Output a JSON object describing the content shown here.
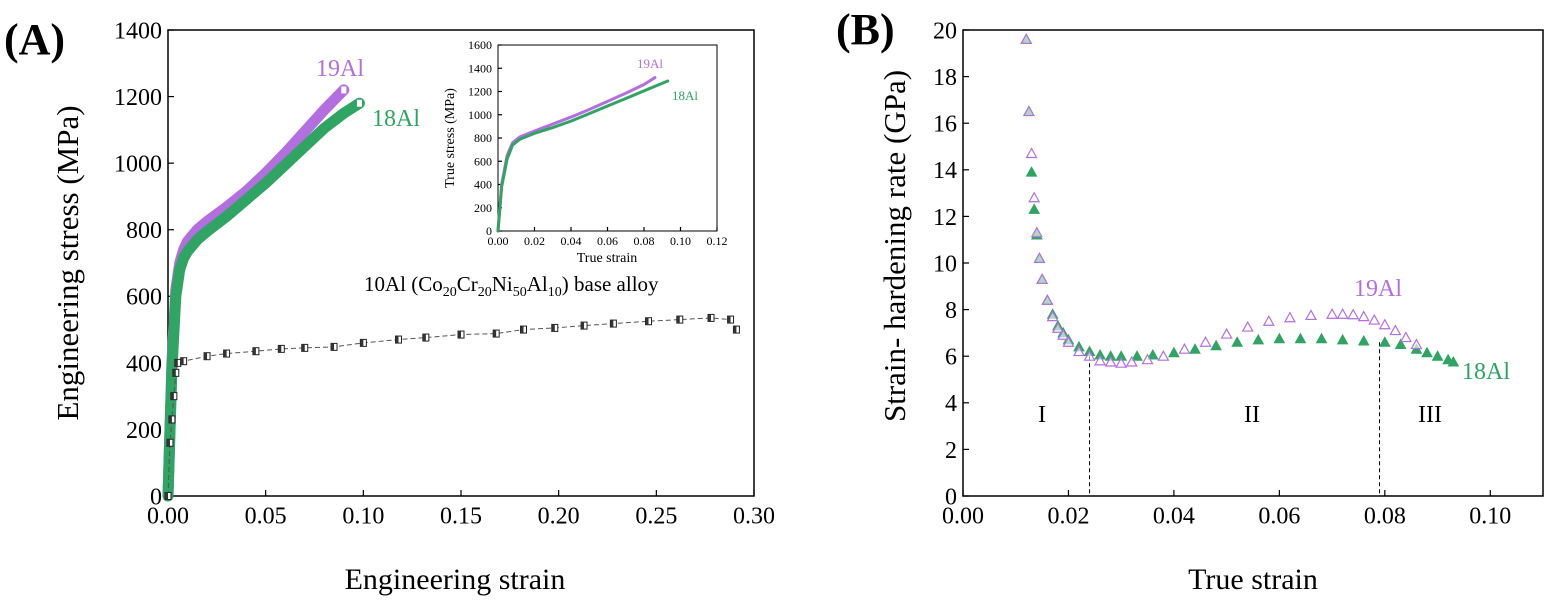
{
  "panels": {
    "a": {
      "letter": "(A)"
    },
    "b": {
      "letter": "(B)"
    }
  },
  "colors": {
    "al19": "#b36fdf",
    "al18": "#2fa463",
    "base": "#333333"
  },
  "chart_data": [
    {
      "id": "A",
      "type": "line",
      "xlabel": "Engineering strain",
      "ylabel": "Engineering stress (MPa)",
      "xlim": [
        0,
        0.3
      ],
      "ylim": [
        0,
        1400
      ],
      "xticks": [
        "0.00",
        "0.05",
        "0.10",
        "0.15",
        "0.20",
        "0.25",
        "0.30"
      ],
      "yticks": [
        "0",
        "200",
        "400",
        "600",
        "800",
        "1000",
        "1200",
        "1400"
      ],
      "grid": false,
      "annotation": {
        "base_prefix": "10Al (Co",
        "s1": "20",
        "cr": "Cr",
        "s2": "20",
        "ni": "Ni",
        "s3": "50",
        "al": "Al",
        "s4": "10",
        "base_suffix": ") base alloy"
      },
      "series": [
        {
          "name": "19Al",
          "color": "#b36fdf",
          "x": [
            0,
            0.002,
            0.004,
            0.006,
            0.008,
            0.01,
            0.015,
            0.02,
            0.03,
            0.04,
            0.05,
            0.06,
            0.07,
            0.08,
            0.09
          ],
          "y": [
            0,
            400,
            620,
            700,
            740,
            765,
            800,
            825,
            868,
            915,
            970,
            1030,
            1095,
            1160,
            1220
          ]
        },
        {
          "name": "18Al",
          "color": "#2fa463",
          "x": [
            0,
            0.002,
            0.004,
            0.006,
            0.008,
            0.01,
            0.015,
            0.02,
            0.03,
            0.04,
            0.05,
            0.06,
            0.07,
            0.08,
            0.09,
            0.098
          ],
          "y": [
            0,
            380,
            600,
            680,
            715,
            735,
            770,
            795,
            840,
            890,
            940,
            995,
            1050,
            1105,
            1150,
            1180
          ]
        },
        {
          "name": "10Al",
          "color": "#333333",
          "x": [
            0,
            0.001,
            0.002,
            0.003,
            0.004,
            0.005,
            0.008,
            0.02,
            0.03,
            0.045,
            0.058,
            0.07,
            0.085,
            0.1,
            0.118,
            0.132,
            0.15,
            0.168,
            0.182,
            0.198,
            0.213,
            0.228,
            0.246,
            0.262,
            0.278,
            0.288,
            0.291
          ],
          "y": [
            0,
            160,
            230,
            300,
            370,
            400,
            405,
            420,
            428,
            435,
            442,
            445,
            448,
            460,
            470,
            476,
            485,
            488,
            500,
            505,
            512,
            518,
            525,
            530,
            535,
            530,
            500
          ]
        }
      ]
    },
    {
      "id": "A-inset",
      "type": "line",
      "xlabel": "True strain",
      "ylabel": "True stress (MPa)",
      "xlim": [
        0,
        0.12
      ],
      "ylim": [
        0,
        1600
      ],
      "xticks": [
        "0.00",
        "0.02",
        "0.04",
        "0.06",
        "0.08",
        "0.10",
        "0.12"
      ],
      "yticks": [
        "0",
        "200",
        "400",
        "600",
        "800",
        "1000",
        "1200",
        "1400",
        "1600"
      ],
      "grid": false,
      "series": [
        {
          "name": "19Al",
          "color": "#b36fdf",
          "x": [
            0,
            0.002,
            0.005,
            0.008,
            0.012,
            0.02,
            0.03,
            0.04,
            0.05,
            0.06,
            0.07,
            0.08,
            0.086
          ],
          "y": [
            0,
            400,
            650,
            760,
            810,
            860,
            920,
            980,
            1045,
            1115,
            1185,
            1260,
            1320
          ]
        },
        {
          "name": "18Al",
          "color": "#2fa463",
          "x": [
            0,
            0.002,
            0.005,
            0.008,
            0.012,
            0.02,
            0.03,
            0.04,
            0.05,
            0.06,
            0.07,
            0.08,
            0.093
          ],
          "y": [
            0,
            380,
            620,
            740,
            790,
            840,
            890,
            945,
            1010,
            1075,
            1140,
            1205,
            1290
          ]
        }
      ]
    },
    {
      "id": "B",
      "type": "scatter",
      "xlabel": "True strain",
      "ylabel": "Strain- hardening rate (GPa)",
      "xlim": [
        0,
        0.11
      ],
      "ylim": [
        0,
        20
      ],
      "xticks": [
        "0.00",
        "0.02",
        "0.04",
        "0.06",
        "0.08",
        "0.10"
      ],
      "yticks": [
        "0",
        "2",
        "4",
        "6",
        "8",
        "10",
        "12",
        "14",
        "16",
        "18",
        "20"
      ],
      "grid": false,
      "regions": [
        "I",
        "II",
        "III"
      ],
      "region_bounds": [
        0.024,
        0.079
      ],
      "series": [
        {
          "name": "19Al",
          "color": "#b36fdf",
          "x": [
            0.012,
            0.0125,
            0.013,
            0.0135,
            0.014,
            0.0145,
            0.015,
            0.016,
            0.017,
            0.018,
            0.019,
            0.02,
            0.022,
            0.024,
            0.026,
            0.028,
            0.03,
            0.032,
            0.035,
            0.038,
            0.042,
            0.046,
            0.05,
            0.054,
            0.058,
            0.062,
            0.066,
            0.07,
            0.072,
            0.074,
            0.076,
            0.078,
            0.08,
            0.082,
            0.084,
            0.086
          ],
          "y": [
            19.6,
            16.5,
            14.7,
            12.8,
            11.3,
            10.2,
            9.3,
            8.4,
            7.7,
            7.2,
            6.9,
            6.6,
            6.2,
            6.0,
            5.8,
            5.75,
            5.7,
            5.75,
            5.85,
            6.0,
            6.3,
            6.6,
            6.95,
            7.25,
            7.5,
            7.65,
            7.75,
            7.8,
            7.8,
            7.78,
            7.7,
            7.55,
            7.35,
            7.1,
            6.8,
            6.5
          ]
        },
        {
          "name": "18Al",
          "color": "#2fa463",
          "x": [
            0.012,
            0.0125,
            0.013,
            0.0135,
            0.014,
            0.0145,
            0.015,
            0.016,
            0.017,
            0.018,
            0.019,
            0.02,
            0.022,
            0.024,
            0.026,
            0.028,
            0.03,
            0.033,
            0.036,
            0.04,
            0.044,
            0.048,
            0.052,
            0.056,
            0.06,
            0.064,
            0.068,
            0.072,
            0.076,
            0.08,
            0.083,
            0.086,
            0.088,
            0.09,
            0.092,
            0.093
          ],
          "y": [
            19.6,
            16.5,
            13.9,
            12.3,
            11.2,
            10.2,
            9.3,
            8.4,
            7.8,
            7.3,
            7.0,
            6.7,
            6.4,
            6.2,
            6.05,
            6.0,
            6.0,
            6.0,
            6.05,
            6.15,
            6.3,
            6.45,
            6.6,
            6.7,
            6.75,
            6.75,
            6.75,
            6.7,
            6.65,
            6.6,
            6.5,
            6.3,
            6.15,
            6.0,
            5.85,
            5.75
          ]
        }
      ]
    }
  ]
}
